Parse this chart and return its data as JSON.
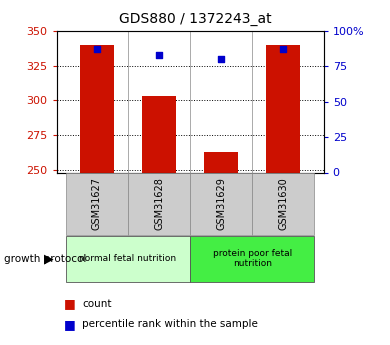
{
  "title": "GDS880 / 1372243_at",
  "samples": [
    "GSM31627",
    "GSM31628",
    "GSM31629",
    "GSM31630"
  ],
  "count_values": [
    340,
    303,
    263,
    340
  ],
  "percentile_values": [
    87,
    83,
    80,
    87
  ],
  "ylim_left": [
    248,
    350
  ],
  "ylim_right": [
    0,
    100
  ],
  "yticks_left": [
    250,
    275,
    300,
    325,
    350
  ],
  "yticks_right": [
    0,
    25,
    50,
    75,
    100
  ],
  "ytick_labels_right": [
    "0",
    "25",
    "50",
    "75",
    "100%"
  ],
  "bar_color": "#cc1100",
  "dot_color": "#0000cc",
  "bar_bottom": 248,
  "groups": [
    {
      "label": "normal fetal nutrition",
      "samples": [
        0,
        1
      ],
      "color": "#ccffcc"
    },
    {
      "label": "protein poor fetal\nnutrition",
      "samples": [
        2,
        3
      ],
      "color": "#44ee44"
    }
  ],
  "group_label": "growth protocol",
  "legend_count_label": "count",
  "legend_pct_label": "percentile rank within the sample",
  "legend_count_color": "#cc1100",
  "legend_pct_color": "#0000cc",
  "axis_color_left": "#cc1100",
  "axis_color_right": "#0000cc",
  "bg_color": "#ffffff",
  "gray_label_color": "#cccccc",
  "bar_border_color": "#888888"
}
